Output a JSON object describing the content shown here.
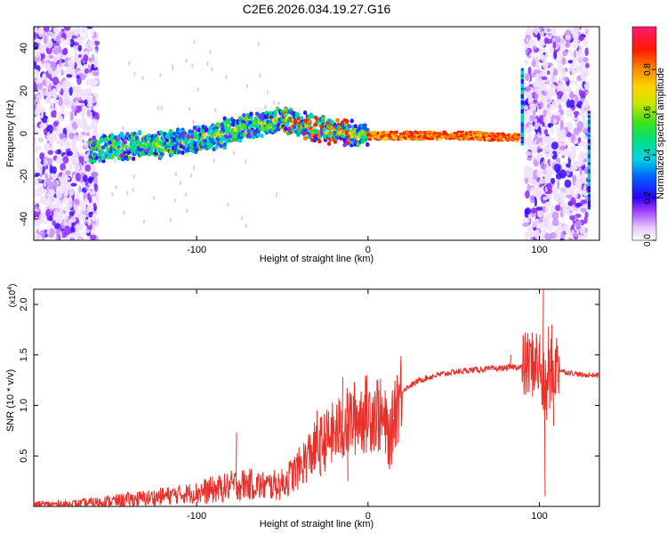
{
  "title": "C2E6.2026.034.19.27.G16",
  "colorbar": {
    "label": "Normalized spectral amplitude",
    "ticks": [
      "0.0",
      "0.2",
      "0.4",
      "0.6",
      "0.8"
    ],
    "tick_values": [
      0.0,
      0.2,
      0.4,
      0.6,
      0.8
    ]
  },
  "chart_data": [
    {
      "type": "heatmap",
      "xlabel": "Height of straight line (km)",
      "ylabel": "Frequency (Hz)",
      "xlim": [
        -195,
        135
      ],
      "ylim": [
        -50,
        50
      ],
      "xticks": [
        -100,
        0,
        100
      ],
      "xtick_labels": [
        "-100",
        "0",
        "100"
      ],
      "yticks": [
        -40,
        -20,
        0,
        20,
        40
      ],
      "ytick_labels": [
        "-40",
        "-20",
        "0",
        "20",
        "40"
      ],
      "color_range": [
        0,
        1
      ],
      "band_center": [
        {
          "x": -162,
          "y": -7
        },
        {
          "x": -140,
          "y": -6
        },
        {
          "x": -120,
          "y": -5
        },
        {
          "x": -100,
          "y": -3
        },
        {
          "x": -80,
          "y": 1
        },
        {
          "x": -60,
          "y": 5
        },
        {
          "x": -45,
          "y": 6
        },
        {
          "x": -35,
          "y": 3
        },
        {
          "x": -20,
          "y": 1
        },
        {
          "x": 0,
          "y": -1
        },
        {
          "x": 30,
          "y": -1
        },
        {
          "x": 60,
          "y": -1
        },
        {
          "x": 85,
          "y": -2
        }
      ],
      "noise_regions_x": [
        [
          -195,
          -158
        ],
        [
          92,
          128
        ]
      ]
    },
    {
      "type": "line",
      "xlabel": "Height of straight line (km)",
      "ylabel": "SNR (10 * v/v)",
      "scale_label": "(x10",
      "scale_exponent": "4",
      "xlim": [
        -195,
        135
      ],
      "ylim": [
        0,
        2.15
      ],
      "xticks": [
        -100,
        0,
        100
      ],
      "xtick_labels": [
        "-100",
        "0",
        "100"
      ],
      "yticks": [
        0.5,
        1.0,
        1.5,
        2.0
      ],
      "ytick_labels": [
        "0.5",
        "1.0",
        "1.5",
        "2.0"
      ],
      "series": [
        {
          "color": "#e8302a",
          "x": [
            -195,
            -170,
            -150,
            -130,
            -110,
            -95,
            -85,
            -77,
            -70,
            -60,
            -50,
            -45,
            -40,
            -35,
            -30,
            -25,
            -20,
            -15,
            -10,
            -5,
            0,
            5,
            10,
            13,
            16,
            20,
            30,
            40,
            50,
            60,
            70,
            80,
            85,
            90,
            95,
            98,
            100,
            102,
            104,
            106,
            108,
            110,
            112,
            115,
            120,
            125,
            130,
            135
          ],
          "y": [
            0.02,
            0.02,
            0.05,
            0.08,
            0.12,
            0.15,
            0.18,
            0.22,
            0.22,
            0.2,
            0.22,
            0.3,
            0.38,
            0.5,
            0.58,
            0.65,
            0.72,
            0.78,
            0.85,
            0.9,
            0.92,
            0.95,
            0.8,
            0.65,
            1.0,
            1.15,
            1.25,
            1.3,
            1.33,
            1.35,
            1.36,
            1.37,
            1.38,
            1.38,
            1.4,
            1.45,
            1.35,
            1.2,
            1.1,
            1.3,
            1.35,
            1.4,
            1.35,
            1.33,
            1.32,
            1.3,
            1.3,
            1.3
          ]
        }
      ],
      "spikes": [
        {
          "x": -77,
          "y": 0.73
        },
        {
          "x": -75,
          "y": 0.05
        },
        {
          "x": -30,
          "y": 0.95
        },
        {
          "x": -28,
          "y": 0.3
        },
        {
          "x": -15,
          "y": 1.28
        },
        {
          "x": -12,
          "y": 0.25
        },
        {
          "x": 12,
          "y": 0.42
        },
        {
          "x": 15,
          "y": 1.15
        },
        {
          "x": 83,
          "y": 1.5
        },
        {
          "x": 100,
          "y": 1.7
        },
        {
          "x": 102,
          "y": 2.15
        },
        {
          "x": 103,
          "y": 0.1
        },
        {
          "x": 105,
          "y": 1.78
        },
        {
          "x": 107,
          "y": 1.8
        },
        {
          "x": 108,
          "y": 0.8
        }
      ]
    }
  ]
}
